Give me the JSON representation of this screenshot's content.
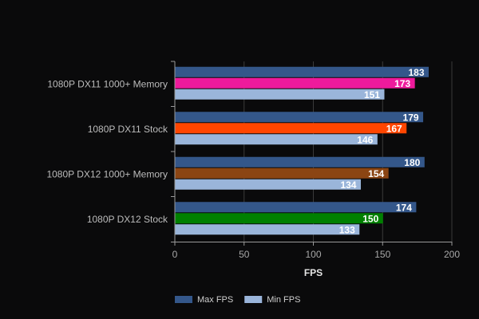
{
  "chart_data": {
    "type": "bar",
    "orientation": "horizontal",
    "categories": [
      "1080P DX11 1000+ Memory",
      "1080P DX11 Stock",
      "1080P DX12 1000+ Memory",
      "1080P DX12 Stock"
    ],
    "series": [
      {
        "name": "Max FPS",
        "values": [
          183,
          179,
          180,
          174
        ],
        "color": "#34578a"
      },
      {
        "name": "",
        "values": [
          173,
          167,
          154,
          150
        ],
        "colors": [
          "#ee1a9c",
          "#ff4500",
          "#8b4513",
          "#008000"
        ]
      },
      {
        "name": "Min FPS",
        "values": [
          151,
          146,
          134,
          133
        ],
        "color": "#9ab5da"
      }
    ],
    "xlabel": "FPS",
    "xlim": [
      0,
      200
    ],
    "xticks": [
      0,
      50,
      100,
      150,
      200
    ],
    "grid": true,
    "legend_position": "bottom",
    "colors": {
      "background": "#0a0a0b",
      "grid": "#3a3a3a",
      "axis": "#9a9a9a"
    }
  }
}
